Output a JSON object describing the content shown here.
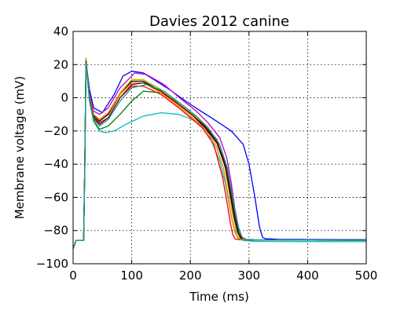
{
  "chart_data": {
    "type": "line",
    "title": "Davies 2012 canine",
    "xlabel": "Time (ms)",
    "ylabel": "Membrane voltage (mV)",
    "xlim": [
      0,
      500
    ],
    "ylim": [
      -100,
      40
    ],
    "xticks": [
      0,
      100,
      200,
      300,
      400,
      500
    ],
    "yticks": [
      -100,
      -80,
      -60,
      -40,
      -20,
      0,
      20,
      40
    ],
    "grid": true,
    "line_colors": [
      "#0000ff",
      "#00bfbf",
      "#ff0000",
      "#008000",
      "#bf00bf",
      "#bfbf00",
      "#000000",
      "#ff8000",
      "#800000",
      "#00a0a0"
    ],
    "series": [
      {
        "x": [
          0,
          5,
          18,
          20,
          22,
          28,
          35,
          50,
          70,
          85,
          100,
          120,
          160,
          200,
          240,
          270,
          290,
          300,
          310,
          318,
          323,
          328,
          335,
          350,
          400,
          500
        ],
        "y": [
          -91,
          -86,
          -86,
          -40,
          22,
          5,
          -6,
          -9,
          2,
          13,
          16,
          15,
          6,
          -4,
          -13,
          -20,
          -28,
          -40,
          -60,
          -78,
          -84,
          -85,
          -85,
          -85.3,
          -85.4,
          -85.5
        ]
      },
      {
        "x": [
          0,
          5,
          18,
          20,
          22,
          28,
          35,
          45,
          55,
          70,
          90,
          120,
          150,
          180,
          210,
          230,
          250,
          260,
          265,
          270,
          275,
          280,
          290,
          310,
          400,
          500
        ],
        "y": [
          -91,
          -86,
          -86,
          -40,
          24,
          0,
          -14,
          -20,
          -21,
          -20,
          -16,
          -11,
          -9,
          -10,
          -14,
          -21,
          -38,
          -52,
          -62,
          -72,
          -79,
          -84,
          -86,
          -86.5,
          -86.6,
          -86.7
        ]
      },
      {
        "x": [
          0,
          5,
          18,
          20,
          22,
          28,
          35,
          45,
          60,
          80,
          100,
          120,
          150,
          180,
          200,
          220,
          240,
          255,
          262,
          268,
          272,
          276,
          282,
          300,
          400,
          500
        ],
        "y": [
          -91,
          -86,
          -86,
          -40,
          22,
          0,
          -12,
          -15,
          -12,
          0,
          7,
          7,
          2,
          -6,
          -12,
          -18,
          -28,
          -48,
          -62,
          -75,
          -82,
          -85,
          -85.5,
          -85.6,
          -85.7,
          -85.8
        ]
      },
      {
        "x": [
          0,
          5,
          18,
          20,
          22,
          28,
          35,
          45,
          60,
          80,
          100,
          120,
          150,
          180,
          200,
          220,
          245,
          258,
          266,
          272,
          278,
          284,
          292,
          310,
          400,
          500
        ],
        "y": [
          -91,
          -86,
          -86,
          -40,
          21,
          -2,
          -14,
          -19,
          -17,
          -10,
          -2,
          4,
          3,
          -3,
          -9,
          -15,
          -25,
          -40,
          -56,
          -70,
          -80,
          -84.5,
          -85.5,
          -85.6,
          -85.7,
          -85.8
        ]
      },
      {
        "x": [
          0,
          5,
          18,
          20,
          22,
          28,
          35,
          45,
          60,
          80,
          105,
          125,
          155,
          185,
          210,
          230,
          250,
          262,
          270,
          276,
          282,
          288,
          296,
          310,
          400,
          500
        ],
        "y": [
          -91,
          -86,
          -86,
          -40,
          22,
          2,
          -8,
          -10,
          -6,
          6,
          15,
          14,
          8,
          -1,
          -8,
          -15,
          -24,
          -36,
          -52,
          -67,
          -78,
          -84,
          -85.5,
          -85.6,
          -85.7,
          -85.8
        ]
      },
      {
        "x": [
          0,
          5,
          18,
          20,
          22,
          28,
          35,
          45,
          60,
          80,
          100,
          120,
          150,
          180,
          205,
          225,
          245,
          258,
          266,
          272,
          278,
          284,
          292,
          310,
          400,
          500
        ],
        "y": [
          -91,
          -86,
          -86,
          -40,
          24,
          1,
          -10,
          -13,
          -9,
          3,
          11,
          11,
          5,
          -3,
          -10,
          -17,
          -26,
          -40,
          -56,
          -70,
          -80,
          -84.5,
          -85.5,
          -85.6,
          -85.7,
          -85.8
        ]
      },
      {
        "x": [
          0,
          5,
          18,
          20,
          22,
          28,
          35,
          45,
          60,
          80,
          100,
          120,
          150,
          180,
          205,
          225,
          245,
          260,
          268,
          275,
          281,
          287,
          295,
          310,
          400,
          500
        ],
        "y": [
          -91,
          -86,
          -86,
          -40,
          22,
          0,
          -11,
          -14,
          -10,
          2,
          10,
          10,
          4,
          -4,
          -11,
          -18,
          -27,
          -42,
          -58,
          -72,
          -81,
          -85,
          -85.5,
          -85.6,
          -85.7,
          -85.8
        ]
      },
      {
        "x": [
          0,
          5,
          18,
          20,
          22,
          28,
          35,
          45,
          60,
          80,
          100,
          120,
          150,
          180,
          200,
          220,
          242,
          256,
          264,
          270,
          276,
          282,
          290,
          310,
          400,
          500
        ],
        "y": [
          -91,
          -86,
          -86,
          -40,
          23,
          1,
          -10,
          -13,
          -9,
          2,
          9,
          9,
          3,
          -5,
          -11,
          -17,
          -27,
          -42,
          -58,
          -72,
          -81,
          -85,
          -85.5,
          -85.6,
          -85.7,
          -85.8
        ]
      },
      {
        "x": [
          0,
          5,
          18,
          20,
          22,
          28,
          35,
          45,
          60,
          80,
          100,
          120,
          150,
          180,
          205,
          225,
          245,
          260,
          269,
          276,
          282,
          288,
          296,
          310,
          400,
          500
        ],
        "y": [
          -91,
          -86,
          -86,
          -40,
          22,
          0,
          -12,
          -16,
          -12,
          0,
          8,
          9,
          4,
          -4,
          -11,
          -17,
          -26,
          -40,
          -57,
          -71,
          -80,
          -84.5,
          -85.5,
          -85.6,
          -85.7,
          -85.8
        ]
      },
      {
        "x": [
          0,
          5,
          18,
          20,
          22,
          28,
          35,
          45,
          60,
          80,
          100,
          125,
          155,
          185,
          210,
          230,
          250,
          263,
          271,
          278,
          284,
          290,
          298,
          310,
          400,
          500
        ],
        "y": [
          -91,
          -86,
          -86,
          -40,
          21,
          -1,
          -13,
          -17,
          -13,
          -2,
          6,
          8,
          4,
          -4,
          -11,
          -18,
          -28,
          -42,
          -58,
          -72,
          -81,
          -85,
          -85.5,
          -85.6,
          -85.7,
          -85.8
        ]
      }
    ]
  }
}
